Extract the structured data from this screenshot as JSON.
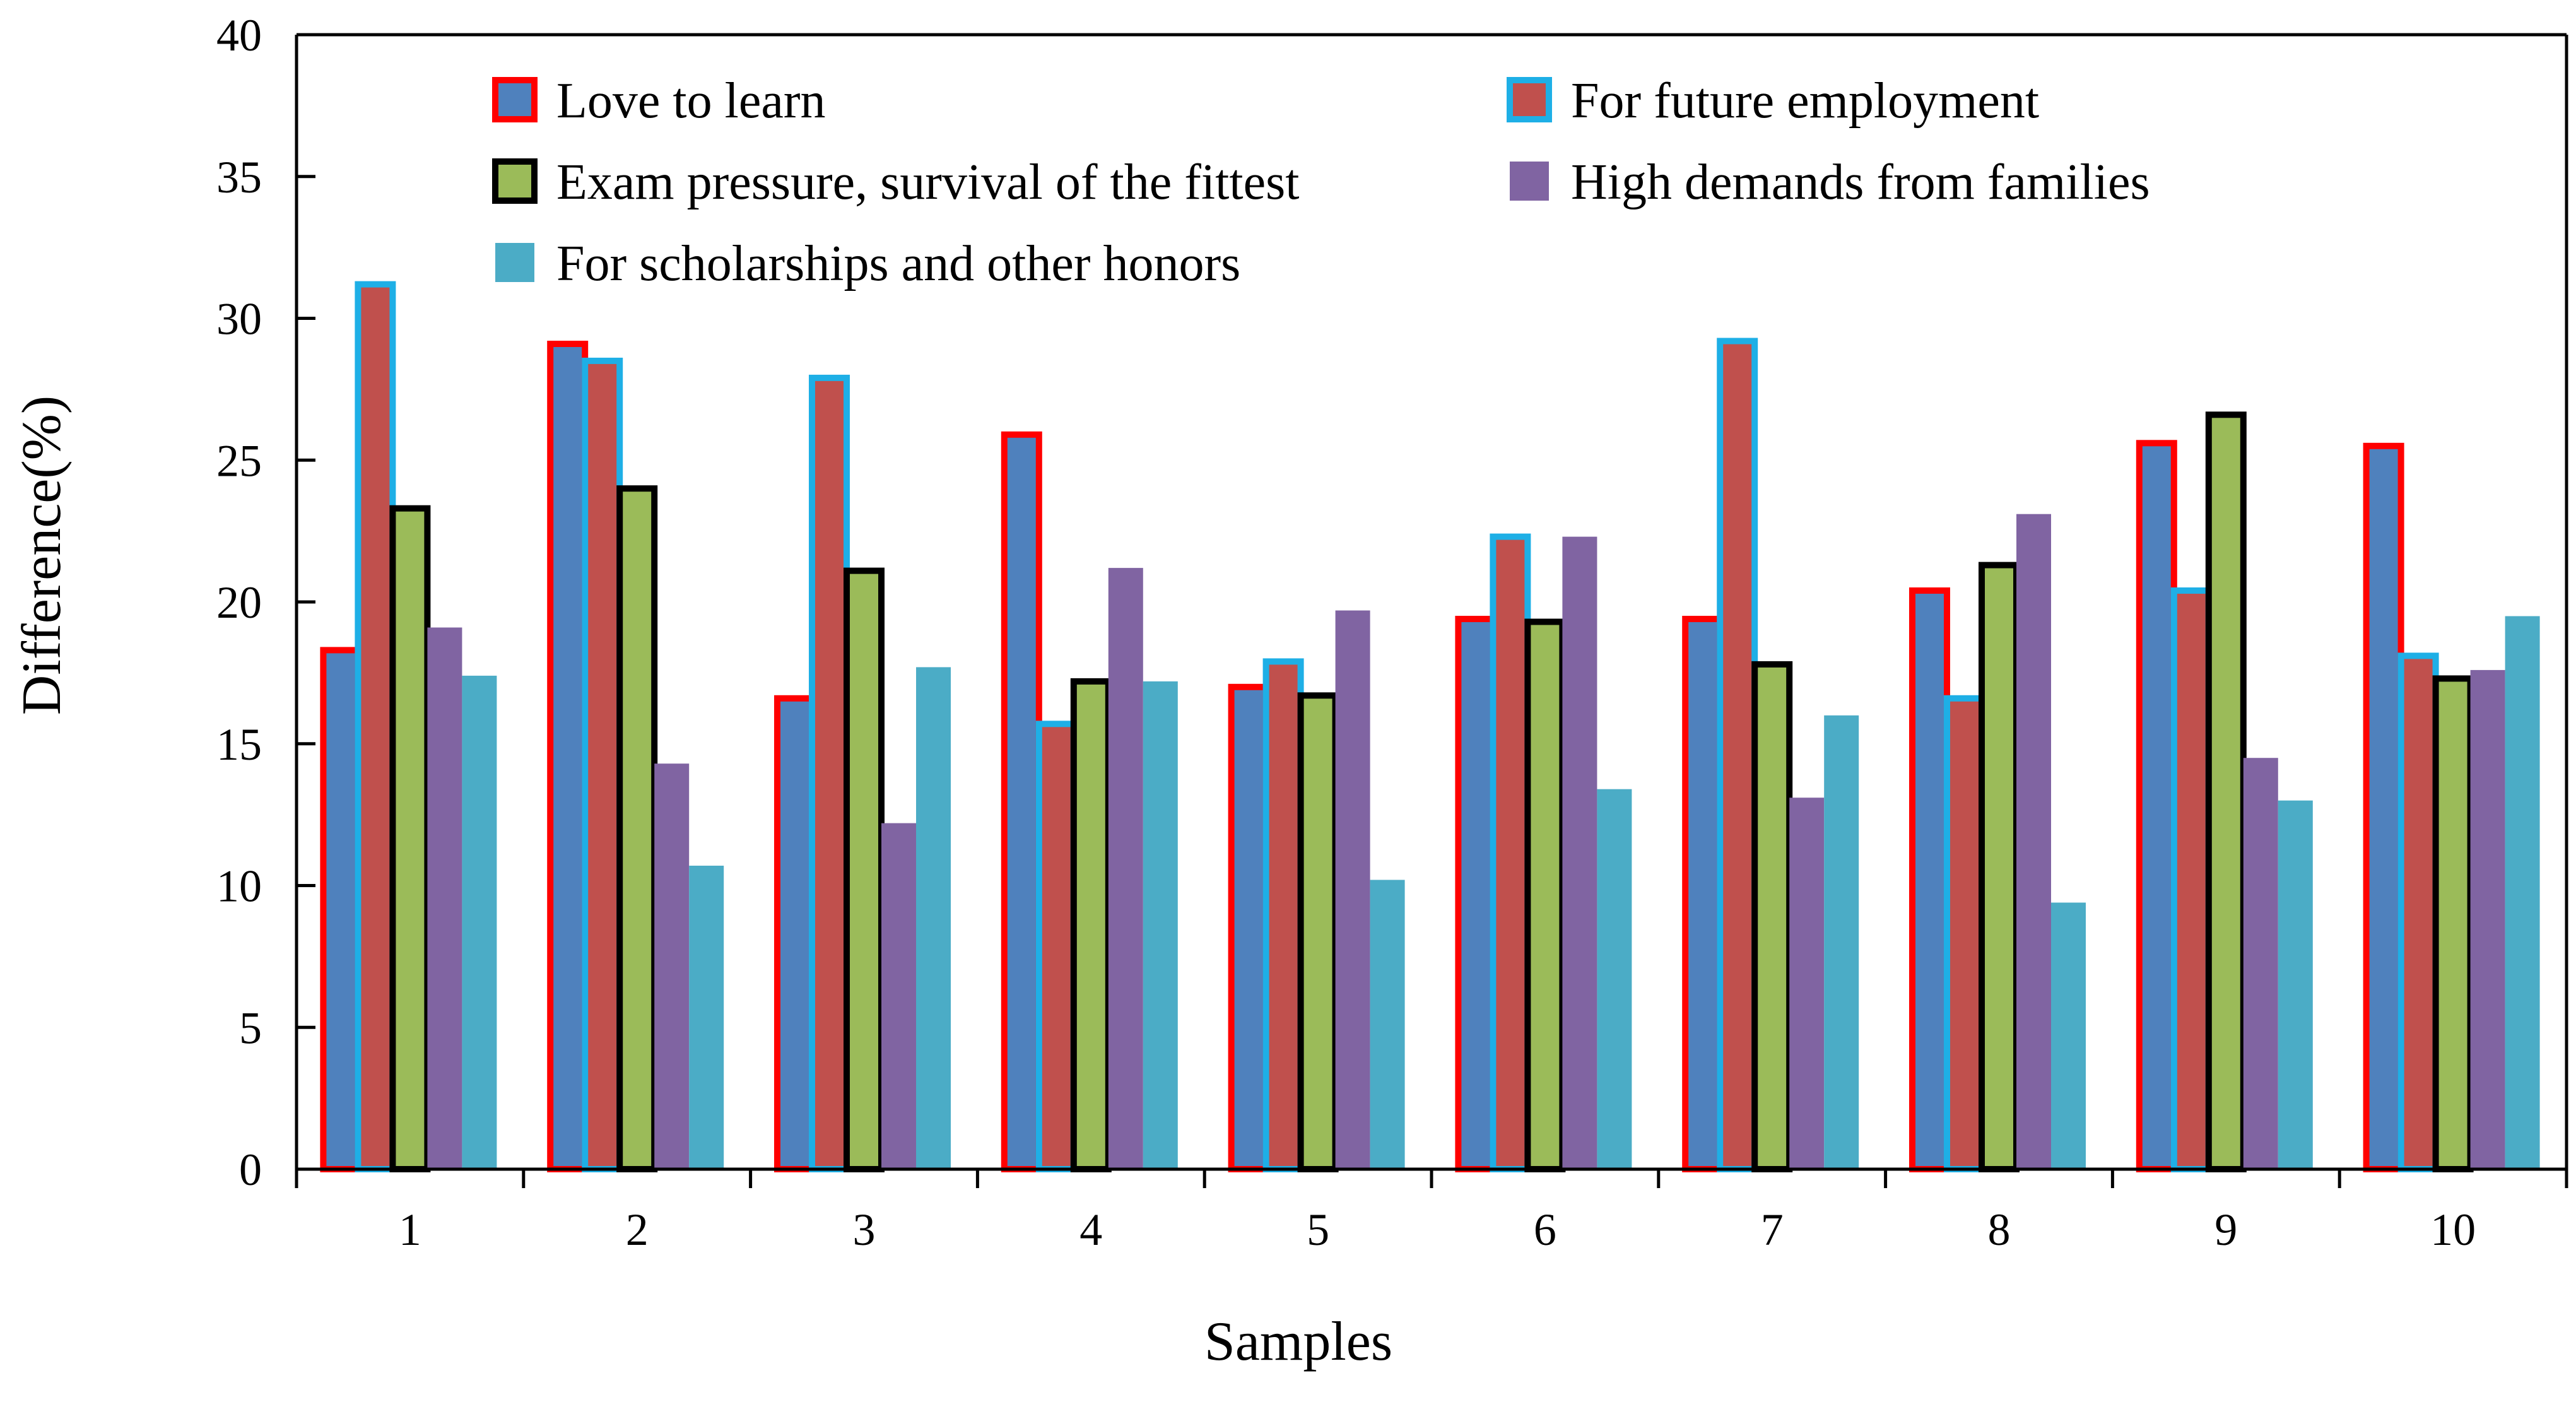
{
  "chart_data": {
    "type": "bar",
    "xlabel": "Samples",
    "ylabel": "Difference(%)",
    "ylim": [
      0,
      40
    ],
    "yticks": [
      0,
      5,
      10,
      15,
      20,
      25,
      30,
      35,
      40
    ],
    "grid": false,
    "legend_position": "top, inside plot (two columns)",
    "categories": [
      "1",
      "2",
      "3",
      "4",
      "5",
      "6",
      "7",
      "8",
      "9",
      "10"
    ],
    "series": [
      {
        "name": "Love to learn",
        "fill": "#4F81BD",
        "outline": "#FF0000",
        "values": [
          18.3,
          29.1,
          16.6,
          25.9,
          17.0,
          19.4,
          19.4,
          20.4,
          25.6,
          25.5
        ]
      },
      {
        "name": "For future employment",
        "fill": "#C0504D",
        "outline": "#1EAFE6",
        "values": [
          31.2,
          28.5,
          27.9,
          15.7,
          17.9,
          22.3,
          29.2,
          16.6,
          20.4,
          18.1
        ]
      },
      {
        "name": "Exam pressure, survival of the fittest",
        "fill": "#9BBB59",
        "outline": "#000000",
        "values": [
          23.3,
          24.0,
          21.1,
          17.2,
          16.7,
          19.3,
          17.8,
          21.3,
          26.6,
          17.3
        ]
      },
      {
        "name": "High demands from families",
        "fill": "#8064A2",
        "outline": "",
        "values": [
          19.1,
          14.3,
          12.2,
          21.2,
          19.7,
          22.3,
          13.1,
          23.1,
          14.5,
          17.6
        ]
      },
      {
        "name": "For scholarships and other honors",
        "fill": "#4BACC6",
        "outline": "",
        "values": [
          17.4,
          10.7,
          17.7,
          17.2,
          10.2,
          13.4,
          16.0,
          9.4,
          13.0,
          19.5
        ]
      }
    ]
  }
}
